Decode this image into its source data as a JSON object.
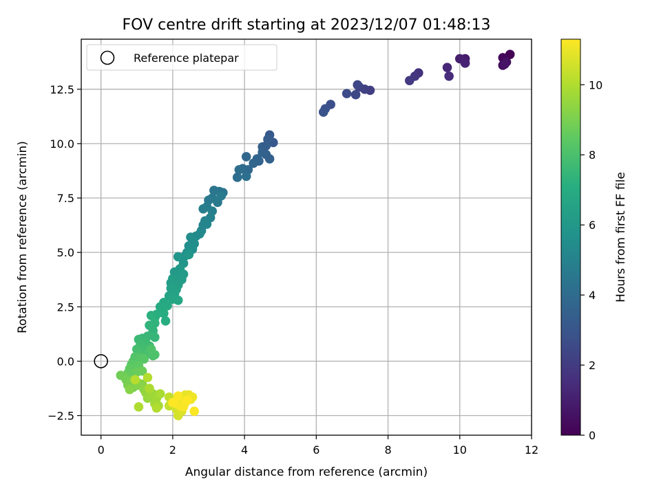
{
  "chart_data": {
    "type": "scatter",
    "title": "FOV centre drift starting at 2023/12/07 01:48:13",
    "xlabel": "Angular distance from reference (arcmin)",
    "ylabel": "Rotation from reference (arcmin)",
    "xlim": [
      -0.55,
      12.0
    ],
    "ylim": [
      -3.4,
      14.8
    ],
    "x_ticks": [
      0,
      2,
      4,
      6,
      8,
      10,
      12
    ],
    "y_ticks": [
      -2.5,
      0.0,
      2.5,
      5.0,
      7.5,
      10.0,
      12.5
    ],
    "x_tick_labels": [
      "0",
      "2",
      "4",
      "6",
      "8",
      "10",
      "12"
    ],
    "y_tick_labels": [
      "−2.5",
      "0.0",
      "2.5",
      "5.0",
      "7.5",
      "10.0",
      "12.5"
    ],
    "grid": true,
    "legend": {
      "position": "top-left",
      "entries": [
        "Reference platepar"
      ]
    },
    "colorbar": {
      "label": "Hours from first FF file",
      "colormap": "viridis",
      "range": [
        0,
        11.3
      ],
      "ticks": [
        0,
        2,
        4,
        6,
        8,
        10
      ],
      "tick_labels": [
        "0",
        "2",
        "4",
        "6",
        "8",
        "10"
      ]
    },
    "reference_point": {
      "x": 0.0,
      "y": 0.0
    },
    "points": [
      [
        11.4,
        14.1,
        0.05
      ],
      [
        11.2,
        13.95,
        0.2
      ],
      [
        11.2,
        13.6,
        0.35
      ],
      [
        11.3,
        13.75,
        0.5
      ],
      [
        11.25,
        13.65,
        0.6
      ],
      [
        10.15,
        13.9,
        0.8
      ],
      [
        10.0,
        13.9,
        0.95
      ],
      [
        10.15,
        13.7,
        1.1
      ],
      [
        9.65,
        13.5,
        1.25
      ],
      [
        9.7,
        13.1,
        1.4
      ],
      [
        8.85,
        13.25,
        1.6
      ],
      [
        8.75,
        13.1,
        1.75
      ],
      [
        8.6,
        12.9,
        1.9
      ],
      [
        7.5,
        12.45,
        2.05
      ],
      [
        7.35,
        12.5,
        2.15
      ],
      [
        7.2,
        12.6,
        2.25
      ],
      [
        7.15,
        12.7,
        2.35
      ],
      [
        7.1,
        12.25,
        2.45
      ],
      [
        6.85,
        12.3,
        2.55
      ],
      [
        6.4,
        11.8,
        2.7
      ],
      [
        6.25,
        11.6,
        2.8
      ],
      [
        6.2,
        11.45,
        2.9
      ],
      [
        4.8,
        10.05,
        3.1
      ],
      [
        4.7,
        10.4,
        3.2
      ],
      [
        4.65,
        10.2,
        3.3
      ],
      [
        4.5,
        9.85,
        3.4
      ],
      [
        4.6,
        9.5,
        3.45
      ],
      [
        4.7,
        9.3,
        3.5
      ],
      [
        4.4,
        9.2,
        3.6
      ],
      [
        4.25,
        9.1,
        3.7
      ],
      [
        4.05,
        9.4,
        3.75
      ],
      [
        4.1,
        8.8,
        3.85
      ],
      [
        3.95,
        8.85,
        3.9
      ],
      [
        3.85,
        8.8,
        4.0
      ],
      [
        3.8,
        8.45,
        4.05
      ],
      [
        4.05,
        8.5,
        4.1
      ],
      [
        4.35,
        9.3,
        3.65
      ],
      [
        4.5,
        9.6,
        3.55
      ],
      [
        4.6,
        9.9,
        3.35
      ],
      [
        3.4,
        7.75,
        4.3
      ],
      [
        3.3,
        7.8,
        4.35
      ],
      [
        3.15,
        7.85,
        4.4
      ],
      [
        3.1,
        7.5,
        4.5
      ],
      [
        3.0,
        7.4,
        4.55
      ],
      [
        3.25,
        7.3,
        4.6
      ],
      [
        3.35,
        7.6,
        4.65
      ],
      [
        2.95,
        7.1,
        4.7
      ],
      [
        2.85,
        7.0,
        4.8
      ],
      [
        3.1,
        6.9,
        4.85
      ],
      [
        3.05,
        6.6,
        4.9
      ],
      [
        2.9,
        6.45,
        5.0
      ],
      [
        2.85,
        6.25,
        5.05
      ],
      [
        2.95,
        6.3,
        5.1
      ],
      [
        2.8,
        6.0,
        5.2
      ],
      [
        2.75,
        5.85,
        5.3
      ],
      [
        2.65,
        5.75,
        5.35
      ],
      [
        2.55,
        5.6,
        5.4
      ],
      [
        2.5,
        5.7,
        5.45
      ],
      [
        2.6,
        5.4,
        5.5
      ],
      [
        2.45,
        5.3,
        5.55
      ],
      [
        2.55,
        5.15,
        5.6
      ],
      [
        2.4,
        5.0,
        5.7
      ],
      [
        2.35,
        4.85,
        5.75
      ],
      [
        2.25,
        4.75,
        5.8
      ],
      [
        2.3,
        4.5,
        5.85
      ],
      [
        2.15,
        4.8,
        5.9
      ],
      [
        2.45,
        4.9,
        5.95
      ],
      [
        2.2,
        4.25,
        6.0
      ],
      [
        2.05,
        4.1,
        6.05
      ],
      [
        2.1,
        3.95,
        6.1
      ],
      [
        2.3,
        4.0,
        6.15
      ],
      [
        2.25,
        3.75,
        6.2
      ],
      [
        2.0,
        3.8,
        6.25
      ],
      [
        1.95,
        3.6,
        6.3
      ],
      [
        2.15,
        3.5,
        6.35
      ],
      [
        2.1,
        3.3,
        6.4
      ],
      [
        1.95,
        3.35,
        6.45
      ],
      [
        2.05,
        3.1,
        6.5
      ],
      [
        1.9,
        3.0,
        6.55
      ],
      [
        2.0,
        2.85,
        6.6
      ],
      [
        2.15,
        2.8,
        6.65
      ],
      [
        1.75,
        2.7,
        6.75
      ],
      [
        1.85,
        2.55,
        6.8
      ],
      [
        1.65,
        2.5,
        6.85
      ],
      [
        1.75,
        2.2,
        6.95
      ],
      [
        1.8,
        1.85,
        7.0
      ],
      [
        1.55,
        2.15,
        7.05
      ],
      [
        1.5,
        2.0,
        7.1
      ],
      [
        1.4,
        2.1,
        7.15
      ],
      [
        1.5,
        1.75,
        7.25
      ],
      [
        1.35,
        1.65,
        7.3
      ],
      [
        1.45,
        1.4,
        7.35
      ],
      [
        1.5,
        1.1,
        7.45
      ],
      [
        1.3,
        1.15,
        7.5
      ],
      [
        1.15,
        1.05,
        7.55
      ],
      [
        1.05,
        1.0,
        7.6
      ],
      [
        1.25,
        0.85,
        7.65
      ],
      [
        1.35,
        0.7,
        7.7
      ],
      [
        1.1,
        0.75,
        7.75
      ],
      [
        1.2,
        0.55,
        7.8
      ],
      [
        1.0,
        0.55,
        7.85
      ],
      [
        1.05,
        0.35,
        7.9
      ],
      [
        1.3,
        0.35,
        7.95
      ],
      [
        1.45,
        0.25,
        8.0
      ],
      [
        1.5,
        0.3,
        8.05
      ],
      [
        1.4,
        0.55,
        8.1
      ],
      [
        0.95,
        0.2,
        8.15
      ],
      [
        0.9,
        0.0,
        8.2
      ],
      [
        1.1,
        0.15,
        8.25
      ],
      [
        1.2,
        0.1,
        8.3
      ],
      [
        0.85,
        -0.15,
        8.35
      ],
      [
        0.95,
        -0.3,
        8.4
      ],
      [
        1.05,
        -0.2,
        8.45
      ],
      [
        0.8,
        -0.35,
        8.5
      ],
      [
        0.75,
        -0.55,
        8.55
      ],
      [
        0.9,
        -0.6,
        8.6
      ],
      [
        1.0,
        -0.5,
        8.65
      ],
      [
        1.15,
        -0.45,
        8.7
      ],
      [
        0.65,
        -0.7,
        8.75
      ],
      [
        0.55,
        -0.65,
        8.8
      ],
      [
        0.7,
        -0.85,
        8.85
      ],
      [
        0.85,
        -0.9,
        8.9
      ],
      [
        0.75,
        -1.1,
        8.95
      ],
      [
        0.9,
        -1.2,
        9.0
      ],
      [
        1.0,
        -0.95,
        9.1
      ],
      [
        1.05,
        -1.1,
        9.15
      ],
      [
        0.8,
        -1.3,
        9.2
      ],
      [
        1.15,
        -1.05,
        9.25
      ],
      [
        1.2,
        -1.3,
        9.3
      ],
      [
        1.25,
        -1.45,
        9.4
      ],
      [
        1.3,
        -1.7,
        9.5
      ],
      [
        1.35,
        -1.6,
        9.55
      ],
      [
        1.45,
        -1.5,
        9.6
      ],
      [
        1.55,
        -1.7,
        9.65
      ],
      [
        1.5,
        -1.95,
        9.7
      ],
      [
        1.6,
        -2.05,
        9.75
      ],
      [
        1.65,
        -1.5,
        9.8
      ],
      [
        1.35,
        -1.25,
        9.85
      ],
      [
        1.05,
        -2.1,
        9.9
      ],
      [
        1.55,
        -2.15,
        9.95
      ],
      [
        1.3,
        -0.75,
        10.0
      ],
      [
        0.95,
        -0.85,
        10.05
      ],
      [
        1.9,
        -1.65,
        10.2
      ],
      [
        1.9,
        -2.05,
        10.3
      ],
      [
        2.05,
        -1.85,
        10.4
      ],
      [
        2.1,
        -2.2,
        10.5
      ],
      [
        2.15,
        -2.5,
        10.6
      ],
      [
        2.25,
        -2.3,
        10.7
      ],
      [
        2.2,
        -1.75,
        10.8
      ],
      [
        2.3,
        -1.7,
        10.85
      ],
      [
        2.35,
        -1.55,
        10.9
      ],
      [
        2.45,
        -1.55,
        10.95
      ],
      [
        2.5,
        -1.75,
        11.0
      ],
      [
        2.55,
        -1.65,
        11.05
      ],
      [
        2.35,
        -1.9,
        11.1
      ],
      [
        2.2,
        -2.05,
        11.15
      ],
      [
        2.1,
        -1.95,
        11.2
      ],
      [
        2.3,
        -2.1,
        11.22
      ],
      [
        2.6,
        -2.3,
        11.25
      ],
      [
        2.15,
        -1.6,
        11.27
      ],
      [
        2.4,
        -1.8,
        11.3
      ],
      [
        2.0,
        -1.9,
        11.3
      ]
    ]
  }
}
